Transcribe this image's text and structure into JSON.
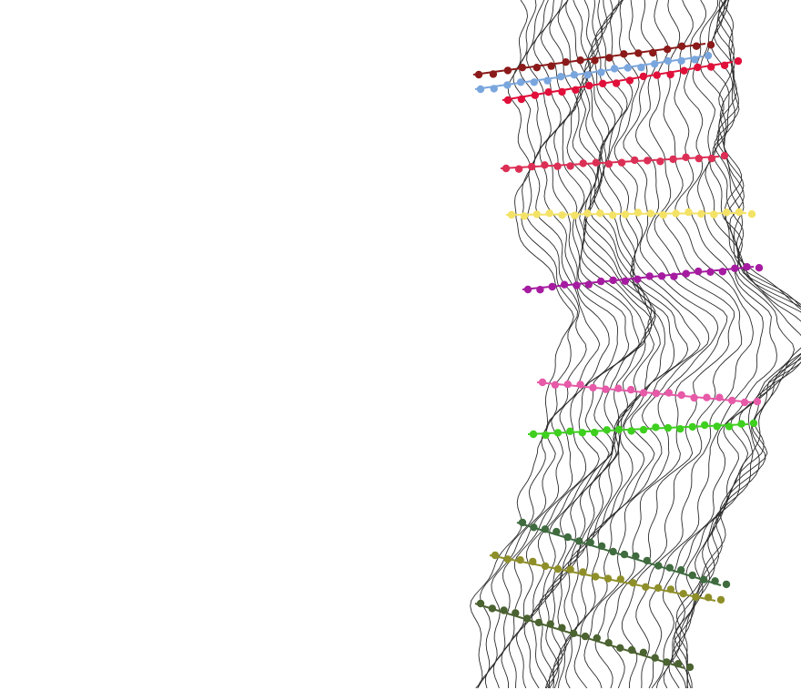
{
  "section": {
    "background": "#ffffff",
    "trace_color": "#2b2b2b"
  },
  "horizons": [
    {
      "id": "h1",
      "color": "#8b1a1a"
    },
    {
      "id": "h2",
      "color": "#7aa6de"
    },
    {
      "id": "h3",
      "color": "#e0103a"
    },
    {
      "id": "h4",
      "color": "#dc2f55"
    },
    {
      "id": "h5",
      "color": "#f3e266"
    },
    {
      "id": "h6",
      "color": "#a51ca0"
    },
    {
      "id": "h7",
      "color": "#e65aa8"
    },
    {
      "id": "h8",
      "color": "#3ecf1f"
    },
    {
      "id": "h9",
      "color": "#3f6b3f"
    },
    {
      "id": "h10",
      "color": "#8f8f2a"
    },
    {
      "id": "h11",
      "color": "#4b6231"
    }
  ]
}
